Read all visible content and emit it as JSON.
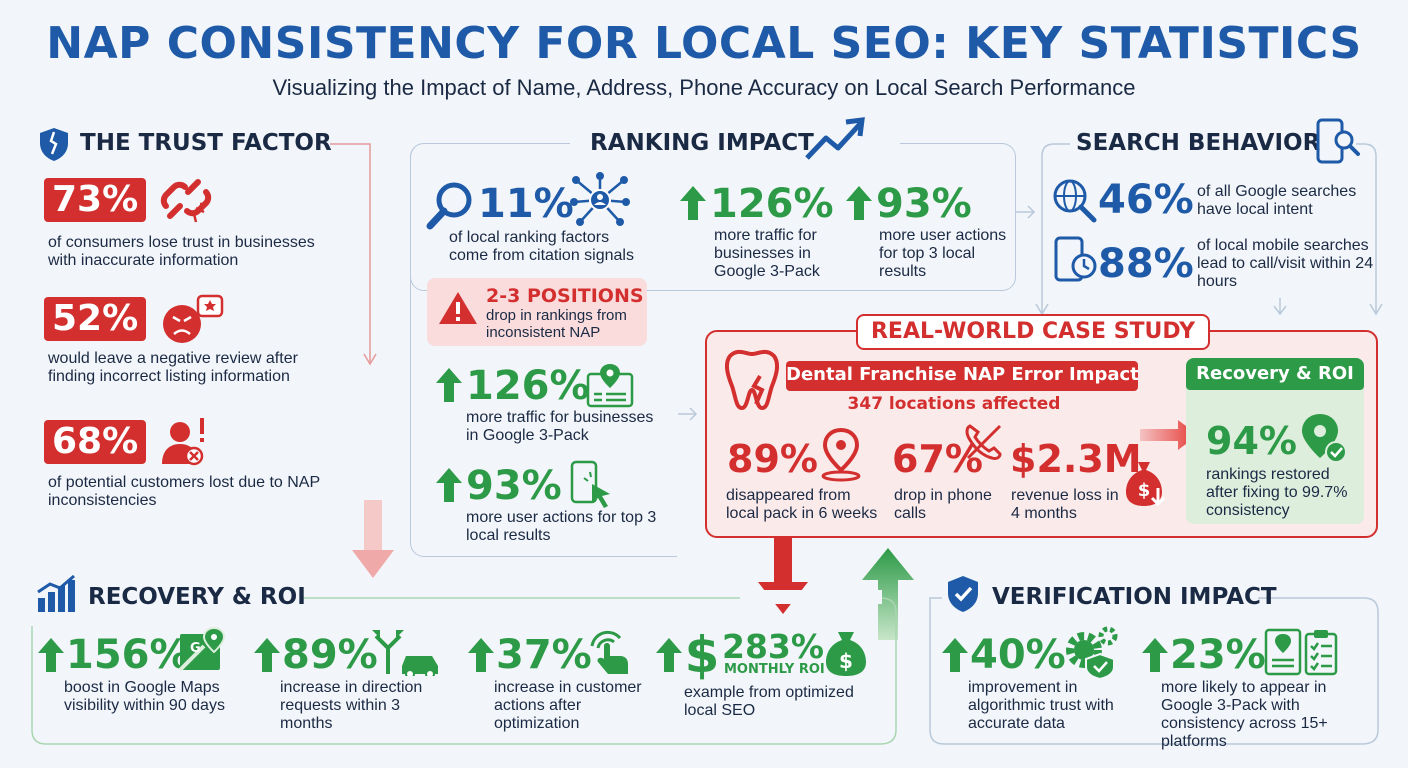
{
  "header": {
    "title": "NAP CONSISTENCY FOR LOCAL SEO: KEY STATISTICS",
    "subtitle": "Visualizing the Impact of Name, Address, Phone Accuracy on Local Search Performance"
  },
  "trust": {
    "title": "THE TRUST FACTOR",
    "items": [
      {
        "value": "73%",
        "desc": "of consumers lose trust in businesses with inaccurate information",
        "icon": "broken-link-icon"
      },
      {
        "value": "52%",
        "desc": "would leave a negative review after finding incorrect listing information",
        "icon": "angry-review-icon"
      },
      {
        "value": "68%",
        "desc": "of potential customers lost due to NAP inconsistencies",
        "icon": "lost-user-icon"
      }
    ]
  },
  "ranking": {
    "title": "RANKING IMPACT",
    "citation": {
      "value": "11%",
      "desc": "of local ranking factors come from citation signals"
    },
    "top": [
      {
        "value": "126%",
        "desc": "more traffic for businesses in Google 3-Pack"
      },
      {
        "value": "93%",
        "desc": "more user actions for top 3 local results"
      }
    ],
    "warning": {
      "value": "2-3 POSITIONS",
      "desc": "drop in rankings from inconsistent NAP"
    },
    "traffic": {
      "value": "126%",
      "desc": "more traffic for businesses in Google 3-Pack"
    },
    "actions": {
      "value": "93%",
      "desc": "more user actions for top 3 local results"
    }
  },
  "search": {
    "title": "SEARCH BEHAVIOR",
    "items": [
      {
        "value": "46%",
        "desc": "of all Google searches have local intent"
      },
      {
        "value": "88%",
        "desc": "of local mobile searches lead to call/visit within 24 hours"
      }
    ]
  },
  "case": {
    "title": "REAL-WORLD CASE STUDY",
    "subtitle": "Dental Franchise NAP Error Impact",
    "locations": "347 locations affected",
    "stats": [
      {
        "value": "89%",
        "desc": "disappeared from local pack in 6 weeks"
      },
      {
        "value": "67%",
        "desc": "drop in phone calls"
      },
      {
        "value": "$2.3M",
        "desc": "revenue loss in 4 months"
      }
    ],
    "recovery": {
      "title": "Recovery & ROI",
      "value": "94%",
      "desc": "rankings restored after fixing to 99.7% consistency"
    }
  },
  "roi": {
    "title": "RECOVERY & ROI",
    "items": [
      {
        "value": "156%",
        "desc": "boost in Google Maps visibility within 90 days"
      },
      {
        "value": "89%",
        "desc": "increase in direction requests within 3 months"
      },
      {
        "value": "37%",
        "desc": "increase in customer actions after optimization"
      },
      {
        "value": "283%",
        "sub": "MONTHLY ROI",
        "desc": "example from optimized local SEO"
      }
    ]
  },
  "verification": {
    "title": "VERIFICATION IMPACT",
    "items": [
      {
        "value": "40%",
        "desc": "improvement in algorithmic trust with accurate data"
      },
      {
        "value": "23%",
        "desc": "more likely to appear in Google 3-Pack with consistency across 15+ platforms"
      }
    ]
  }
}
